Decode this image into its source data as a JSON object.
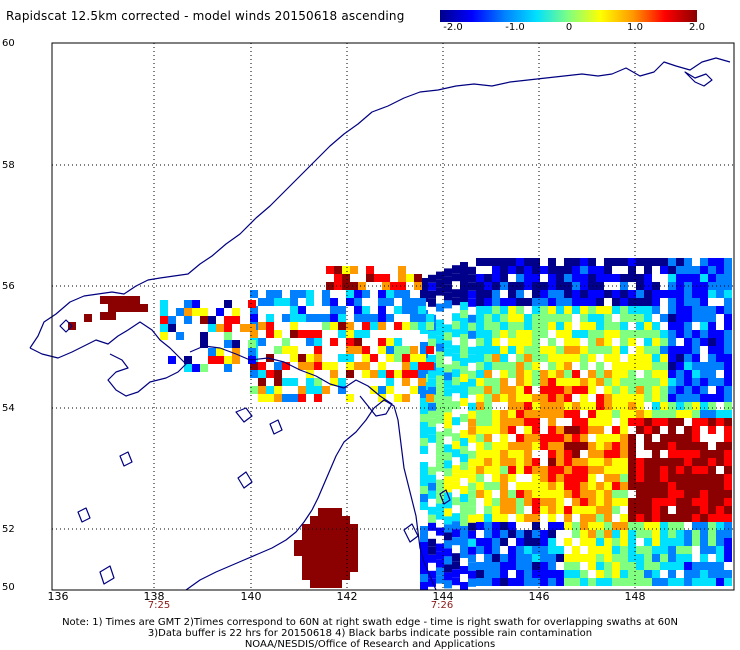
{
  "title": "Rapidscat 12.5km corrected - model winds 20150618 ascending",
  "colorbar": {
    "ticks": [
      "-2.0",
      "-1.0",
      "0",
      "1.0",
      "2.0"
    ],
    "min": -2.0,
    "max": 2.0,
    "colors": [
      "#00008b",
      "#0000ff",
      "#0080ff",
      "#00e0ff",
      "#80ff80",
      "#ffff00",
      "#ff9900",
      "#ff0000",
      "#8b0000"
    ]
  },
  "axes": {
    "lat_labels": [
      "60",
      "58",
      "56",
      "54",
      "52",
      "50"
    ],
    "lon_labels": [
      "136",
      "138",
      "140",
      "142",
      "144",
      "146",
      "148"
    ],
    "time_labels": [
      "7:25",
      "7:26"
    ]
  },
  "notes": [
    "Note: 1) Times are GMT 2)Times correspond to 60N at right swath edge - time is right swath for overlapping swaths at 60N",
    "3)Data buffer is 22 hrs for 20150618 4) Black barbs indicate possible rain contamination",
    "NOAA/NESDIS/Office of Research and Applications"
  ],
  "map": {
    "lat_range": [
      50,
      60
    ],
    "lon_range": [
      135,
      150
    ],
    "grid": true,
    "coast_color": "#000080"
  }
}
